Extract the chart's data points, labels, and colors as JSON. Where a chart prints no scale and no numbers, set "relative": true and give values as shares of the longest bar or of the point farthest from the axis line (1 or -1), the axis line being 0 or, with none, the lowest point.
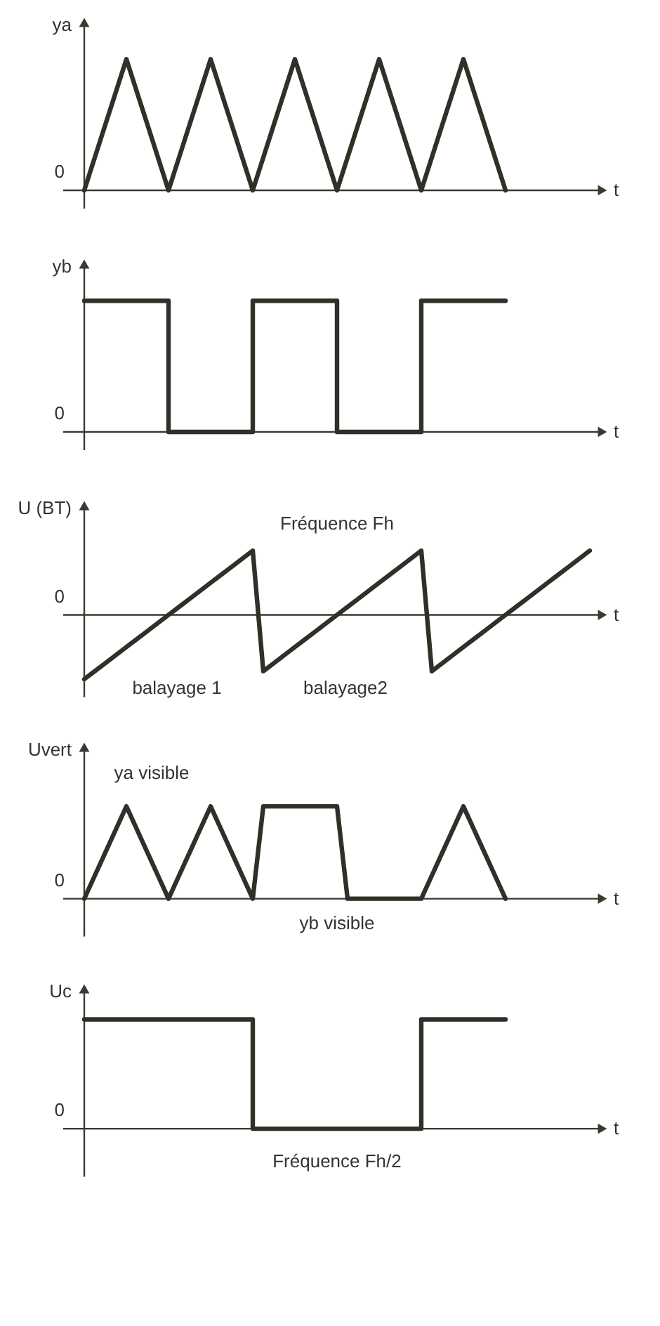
{
  "chart_data": [
    {
      "type": "line",
      "relative": true,
      "ylabel": "ya",
      "xlabel": "t",
      "categories": [
        null,
        null,
        null,
        null,
        null,
        null,
        null,
        null,
        null,
        null,
        null,
        null,
        null,
        null,
        null,
        null,
        null,
        null,
        null,
        null,
        null,
        null,
        null,
        null,
        null,
        null,
        null,
        null,
        null,
        null,
        null,
        null,
        null,
        null,
        null,
        null,
        null,
        null,
        null,
        null,
        null,
        null,
        null,
        null,
        null,
        null,
        null,
        null,
        null
      ],
      "series": [
        {
          "color": "#2f3128",
          "values": [
            0,
            0.25,
            0.5,
            0.75,
            1,
            0.75,
            0.5,
            0.25,
            0,
            0.25,
            0.5,
            0.75,
            1,
            0.75,
            0.5,
            0.25,
            0,
            0.25,
            0.5,
            0.75,
            1,
            0.75,
            0.5,
            0.25,
            0,
            0.25,
            0.5,
            0.75,
            1,
            0.75,
            0.5,
            0.25,
            0,
            0.25,
            0.5,
            0.75,
            1,
            0.75,
            0.5,
            0.25,
            0,
            null,
            null,
            null,
            null,
            null,
            null,
            null,
            null
          ]
        }
      ],
      "annotations": [
        "0"
      ]
    },
    {
      "type": "step",
      "relative": true,
      "ylabel": "yb",
      "xlabel": "t",
      "categories": [
        null,
        null,
        null,
        null,
        null,
        null,
        null,
        null,
        null,
        null,
        null,
        null,
        null,
        null,
        null,
        null,
        null,
        null,
        null,
        null,
        null,
        null,
        null,
        null,
        null,
        null,
        null,
        null,
        null,
        null,
        null,
        null,
        null,
        null,
        null,
        null,
        null,
        null,
        null,
        null,
        null,
        null,
        null,
        null,
        null,
        null,
        null,
        null,
        null
      ],
      "series": [
        {
          "color": "#2f3128",
          "values": [
            1,
            1,
            1,
            1,
            1,
            1,
            1,
            1,
            0,
            0,
            0,
            0,
            0,
            0,
            0,
            0,
            1,
            1,
            1,
            1,
            1,
            1,
            1,
            1,
            0,
            0,
            0,
            0,
            0,
            0,
            0,
            0,
            1,
            1,
            1,
            1,
            1,
            1,
            1,
            1,
            1,
            null,
            null,
            null,
            null,
            null,
            null,
            null,
            null
          ]
        }
      ],
      "annotations": [
        "0"
      ]
    },
    {
      "type": "line",
      "relative": true,
      "ylabel": "U (BT)",
      "xlabel": "t",
      "categories": [
        null,
        null,
        null,
        null,
        null,
        null,
        null,
        null,
        null,
        null,
        null,
        null,
        null,
        null,
        null,
        null,
        null,
        null,
        null,
        null,
        null,
        null,
        null,
        null,
        null,
        null,
        null,
        null,
        null,
        null,
        null,
        null,
        null,
        null,
        null,
        null,
        null,
        null,
        null,
        null,
        null,
        null,
        null,
        null,
        null,
        null,
        null,
        null,
        null
      ],
      "series": [
        {
          "color": "#2f3128",
          "values": [
            -1,
            -0.875,
            -0.75,
            -0.625,
            -0.5,
            -0.375,
            -0.25,
            -0.125,
            0,
            0.125,
            0.25,
            0.375,
            0.5,
            0.625,
            0.75,
            0.875,
            1,
            -0.875,
            -0.75,
            -0.625,
            -0.5,
            -0.375,
            -0.25,
            -0.125,
            0,
            0.125,
            0.25,
            0.375,
            0.5,
            0.625,
            0.75,
            0.875,
            1,
            -0.875,
            -0.75,
            -0.625,
            -0.5,
            -0.375,
            -0.25,
            -0.125,
            0,
            0.125,
            0.25,
            0.375,
            0.5,
            0.625,
            0.75,
            0.875,
            1
          ]
        }
      ],
      "annotations": [
        "0",
        "Fréquence Fh",
        "balayage 1",
        "balayage2"
      ]
    },
    {
      "type": "line",
      "relative": true,
      "ylabel": "Uvert",
      "xlabel": "t",
      "categories": [
        null,
        null,
        null,
        null,
        null,
        null,
        null,
        null,
        null,
        null,
        null,
        null,
        null,
        null,
        null,
        null,
        null,
        null,
        null,
        null,
        null,
        null,
        null,
        null,
        null,
        null,
        null,
        null,
        null,
        null,
        null,
        null,
        null,
        null,
        null,
        null,
        null,
        null,
        null,
        null,
        null,
        null,
        null,
        null,
        null,
        null,
        null,
        null,
        null
      ],
      "series": [
        {
          "color": "#2f3128",
          "values": [
            0,
            0.25,
            0.5,
            0.75,
            1,
            0.75,
            0.5,
            0.25,
            0,
            0.25,
            0.5,
            0.75,
            1,
            0.75,
            0.5,
            0.25,
            0,
            1,
            1,
            1,
            1,
            1,
            1,
            1,
            1,
            0,
            0,
            0,
            0,
            0,
            0,
            0,
            0,
            0.25,
            0.5,
            0.75,
            1,
            0.75,
            0.5,
            0.25,
            0,
            null,
            null,
            null,
            null,
            null,
            null,
            null,
            null
          ]
        }
      ],
      "annotations": [
        "0",
        "ya visible",
        "yb visible"
      ]
    },
    {
      "type": "step",
      "relative": true,
      "ylabel": "Uc",
      "xlabel": "t",
      "categories": [
        null,
        null,
        null,
        null,
        null,
        null,
        null,
        null,
        null,
        null,
        null,
        null,
        null,
        null,
        null,
        null,
        null,
        null,
        null,
        null,
        null,
        null,
        null,
        null,
        null,
        null,
        null,
        null,
        null,
        null,
        null,
        null,
        null,
        null,
        null,
        null,
        null,
        null,
        null,
        null,
        null,
        null,
        null,
        null,
        null,
        null,
        null,
        null,
        null
      ],
      "series": [
        {
          "color": "#2f3128",
          "values": [
            1,
            1,
            1,
            1,
            1,
            1,
            1,
            1,
            1,
            1,
            1,
            1,
            1,
            1,
            1,
            1,
            0,
            0,
            0,
            0,
            0,
            0,
            0,
            0,
            0,
            0,
            0,
            0,
            0,
            0,
            0,
            0,
            1,
            1,
            1,
            1,
            1,
            1,
            1,
            1,
            1,
            null,
            null,
            null,
            null,
            null,
            null,
            null,
            null
          ]
        }
      ],
      "annotations": [
        "0",
        "Fréquence Fh/2"
      ]
    }
  ]
}
